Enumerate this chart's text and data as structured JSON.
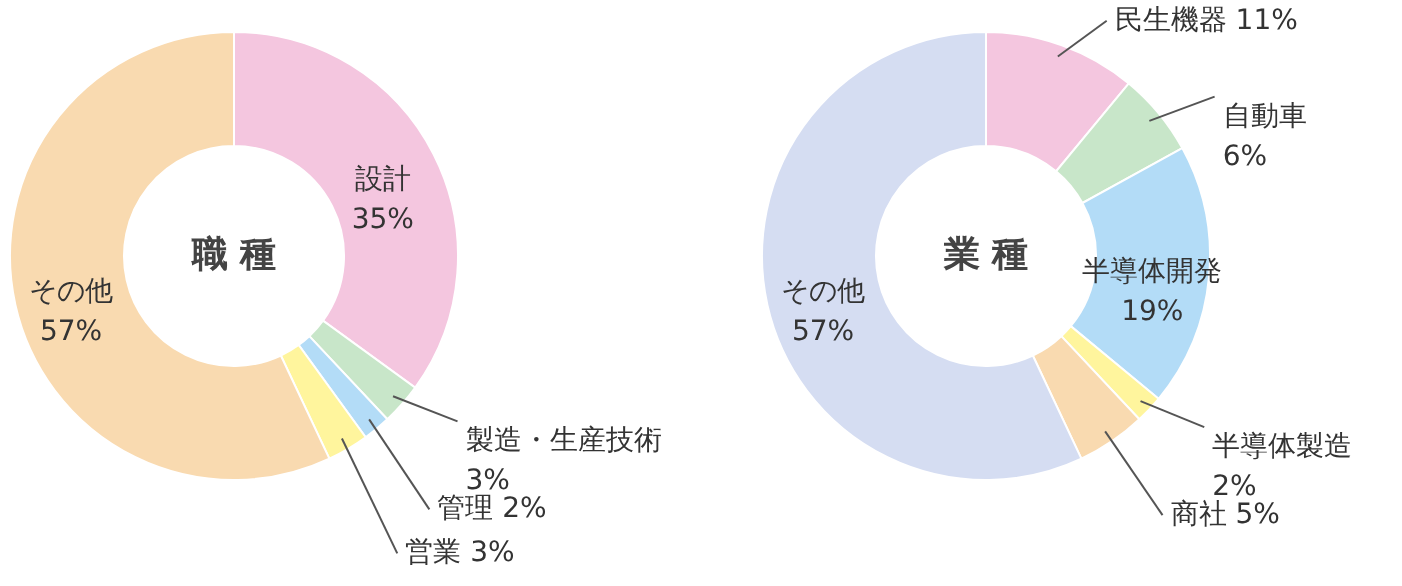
{
  "chart_data": [
    {
      "type": "donut",
      "title": "職 種",
      "categories": [
        "設計",
        "製造・生産技術",
        "管理",
        "営業",
        "その他"
      ],
      "values": [
        35,
        3,
        2,
        3,
        57
      ],
      "value_labels": [
        "35%",
        "3%",
        "2%",
        "3%",
        "57%"
      ],
      "colors": [
        "#f4c6df",
        "#c8e6c9",
        "#b3dcf7",
        "#fff59d",
        "#f9dab0"
      ]
    },
    {
      "type": "donut",
      "title": "業 種",
      "categories": [
        "民生機器",
        "自動車",
        "半導体開発",
        "半導体製造",
        "商社",
        "その他"
      ],
      "values": [
        11,
        6,
        19,
        2,
        5,
        57
      ],
      "value_labels": [
        "11%",
        "6%",
        "19%",
        "2%",
        "5%",
        "57%"
      ],
      "colors": [
        "#f4c6df",
        "#c8e6c9",
        "#b3dcf7",
        "#fff59d",
        "#f9dab0",
        "#d5ddf2"
      ]
    }
  ]
}
